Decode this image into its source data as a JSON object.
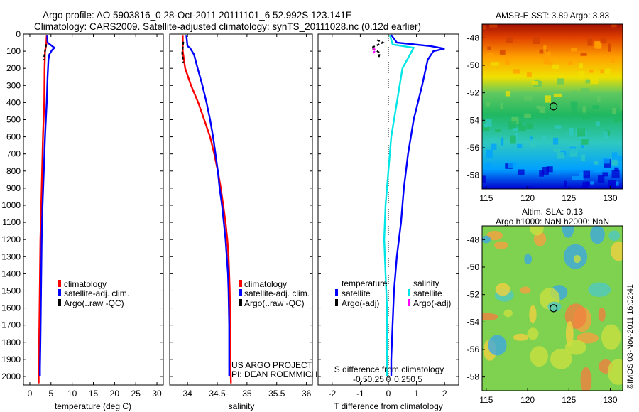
{
  "header": {
    "line1": "Argo profile: AO 5903816_0 28-Oct-2011 20111101_6 52.992S 123.141E",
    "line2": "Climatology: CARS2009. Satellite-adjusted climatology: synTS_20111028.nc (0.12d earlier)"
  },
  "colors": {
    "red": "#ff0000",
    "blue": "#0000ff",
    "cyan": "#00e5e5",
    "magenta": "#ff00ff",
    "black": "#000000"
  },
  "chart_data": [
    {
      "id": "temperature",
      "type": "line",
      "xlabel": "temperature (deg C)",
      "ylabel": "",
      "xlim": [
        -1.5,
        31.5
      ],
      "ylim": [
        2050,
        0
      ],
      "xticks": [
        0,
        5,
        10,
        15,
        20,
        25,
        30
      ],
      "yticks": [
        0,
        100,
        200,
        300,
        400,
        500,
        600,
        700,
        800,
        900,
        1000,
        1100,
        1200,
        1300,
        1400,
        1500,
        1600,
        1700,
        1800,
        1900,
        2000
      ],
      "legend": [
        "climatology",
        "satellite-adj. clim.",
        "Argo(..raw -QC)"
      ],
      "series": [
        {
          "name": "climatology",
          "color": "red",
          "points": [
            [
              4.0,
              5
            ],
            [
              3.9,
              60
            ],
            [
              3.6,
              100
            ],
            [
              3.5,
              200
            ],
            [
              3.4,
              400
            ],
            [
              3.1,
              600
            ],
            [
              2.9,
              800
            ],
            [
              2.7,
              1000
            ],
            [
              2.5,
              1200
            ],
            [
              2.4,
              1400
            ],
            [
              2.3,
              1600
            ],
            [
              2.2,
              1800
            ],
            [
              2.1,
              1950
            ],
            [
              2.1,
              2040
            ]
          ]
        },
        {
          "name": "satellite-adj. clim.",
          "color": "blue",
          "points": [
            [
              4.1,
              5
            ],
            [
              4.2,
              50
            ],
            [
              5.8,
              80
            ],
            [
              5.2,
              95
            ],
            [
              4.6,
              120
            ],
            [
              4.4,
              150
            ],
            [
              4.2,
              250
            ],
            [
              4.0,
              400
            ],
            [
              3.6,
              600
            ],
            [
              3.3,
              800
            ],
            [
              3.0,
              1000
            ],
            [
              2.8,
              1200
            ],
            [
              2.7,
              1400
            ],
            [
              2.6,
              1600
            ],
            [
              2.5,
              1800
            ],
            [
              2.4,
              1950
            ],
            [
              2.4,
              2000
            ]
          ]
        },
        {
          "name": "Argo(..raw -QC)",
          "color": "black",
          "dashed": true,
          "points": [
            [
              3.9,
              60
            ],
            [
              3.7,
              85
            ],
            [
              3.6,
              105
            ],
            [
              3.4,
              130
            ],
            [
              3.3,
              150
            ]
          ]
        }
      ]
    },
    {
      "id": "salinity",
      "type": "line",
      "xlabel": "salinity",
      "xlim": [
        33.7,
        36.1
      ],
      "ylim": [
        2050,
        0
      ],
      "xticks": [
        34,
        34.5,
        35,
        35.5,
        36
      ],
      "legend": [
        "climatology",
        "satellite-adj. clim.",
        "Argo(..raw -QC)"
      ],
      "annotation": [
        "US ARGO PROJECT",
        "PI: DEAN ROEMMICH"
      ],
      "series": [
        {
          "name": "climatology",
          "color": "red",
          "points": [
            [
              33.92,
              5
            ],
            [
              33.92,
              100
            ],
            [
              33.96,
              200
            ],
            [
              34.06,
              300
            ],
            [
              34.18,
              400
            ],
            [
              34.28,
              500
            ],
            [
              34.38,
              600
            ],
            [
              34.45,
              700
            ],
            [
              34.51,
              800
            ],
            [
              34.56,
              900
            ],
            [
              34.6,
              1000
            ],
            [
              34.64,
              1100
            ],
            [
              34.67,
              1200
            ],
            [
              34.69,
              1300
            ],
            [
              34.7,
              1400
            ],
            [
              34.71,
              1500
            ],
            [
              34.72,
              1700
            ],
            [
              34.72,
              1900
            ],
            [
              34.73,
              2040
            ]
          ]
        },
        {
          "name": "satellite-adj. clim.",
          "color": "blue",
          "points": [
            [
              33.98,
              5
            ],
            [
              34.0,
              70
            ],
            [
              34.04,
              80
            ],
            [
              34.11,
              120
            ],
            [
              34.17,
              200
            ],
            [
              34.25,
              300
            ],
            [
              34.32,
              400
            ],
            [
              34.38,
              500
            ],
            [
              34.43,
              600
            ],
            [
              34.47,
              700
            ],
            [
              34.51,
              800
            ],
            [
              34.54,
              900
            ],
            [
              34.58,
              1000
            ],
            [
              34.61,
              1100
            ],
            [
              34.64,
              1200
            ],
            [
              34.66,
              1300
            ],
            [
              34.68,
              1400
            ],
            [
              34.69,
              1500
            ],
            [
              34.7,
              1700
            ],
            [
              34.7,
              1850
            ],
            [
              34.7,
              2000
            ]
          ]
        },
        {
          "name": "Argo(..raw -QC)",
          "color": "black",
          "dashed": true,
          "points": [
            [
              33.93,
              45
            ],
            [
              33.92,
              80
            ],
            [
              33.91,
              110
            ],
            [
              33.92,
              140
            ],
            [
              33.93,
              165
            ]
          ]
        }
      ]
    },
    {
      "id": "difference",
      "type": "line",
      "xlabel": "T difference from climatology",
      "xlabel_top": "S difference from climatology",
      "xlim": [
        -2.5,
        2.5
      ],
      "ylim": [
        2050,
        0
      ],
      "xticks": [
        -2,
        -1,
        0,
        1,
        2
      ],
      "xtick_labels": [
        "-2",
        "-1",
        "0",
        "1",
        "2"
      ],
      "sticks": [
        -1,
        -0.5,
        0,
        0.5,
        1
      ],
      "stick_labels": [
        "-0.5",
        "-0.25",
        "0",
        "0.25",
        "0.5"
      ],
      "legend_headers": [
        "temperature",
        "salinity"
      ],
      "legend": [
        "satellite",
        "Argo(-adj)",
        "satellite",
        "Argo(-adj)"
      ],
      "series": [
        {
          "name": "temperature satellite",
          "color": "blue",
          "points": [
            [
              0.1,
              5
            ],
            [
              0.3,
              50
            ],
            [
              1.5,
              70
            ],
            [
              2.0,
              85
            ],
            [
              1.6,
              100
            ],
            [
              1.4,
              150
            ],
            [
              1.2,
              300
            ],
            [
              0.9,
              500
            ],
            [
              0.7,
              700
            ],
            [
              0.55,
              900
            ],
            [
              0.45,
              1100
            ],
            [
              0.3,
              1300
            ],
            [
              0.2,
              1500
            ],
            [
              0.15,
              1700
            ],
            [
              0.1,
              1900
            ],
            [
              0.1,
              2000
            ]
          ]
        },
        {
          "name": "salinity satellite",
          "color": "cyan",
          "points": [
            [
              0.05,
              5
            ],
            [
              0.15,
              60
            ],
            [
              0.9,
              80
            ],
            [
              0.8,
              110
            ],
            [
              0.5,
              200
            ],
            [
              0.3,
              400
            ],
            [
              0.1,
              600
            ],
            [
              0.0,
              800
            ],
            [
              -0.1,
              1000
            ],
            [
              -0.15,
              1200
            ],
            [
              -0.1,
              1400
            ],
            [
              -0.05,
              1600
            ],
            [
              -0.05,
              1800
            ],
            [
              -0.05,
              2000
            ]
          ]
        },
        {
          "name": "temperature Argo(-adj)",
          "color": "black",
          "dashed": true,
          "points": [
            [
              -0.4,
              35
            ],
            [
              -0.2,
              50
            ],
            [
              -0.6,
              80
            ],
            [
              -0.3,
              110
            ],
            [
              -0.35,
              140
            ]
          ]
        },
        {
          "name": "salinity Argo(-adj)",
          "color": "magenta",
          "dashed": true,
          "points": [
            [
              -0.55,
              80
            ],
            [
              -0.45,
              95
            ],
            [
              -0.6,
              120
            ]
          ]
        }
      ]
    },
    {
      "id": "sst_map",
      "type": "heatmap",
      "title": "AMSR-E SST: 3.89  Argo: 3.83",
      "xlim": [
        114.5,
        131.5
      ],
      "ylim": [
        -59,
        -47
      ],
      "xticks": [
        115,
        120,
        125,
        130
      ],
      "yticks": [
        -48,
        -50,
        -52,
        -54,
        -56,
        -58
      ],
      "marker": [
        123.141,
        -52.992
      ]
    },
    {
      "id": "sla_map",
      "type": "heatmap",
      "title": "Altim. SLA: 0.13",
      "subtitle": "Argo h1000: NaN  h2000: NaN",
      "xlim": [
        114.5,
        131.5
      ],
      "ylim": [
        -59,
        -47
      ],
      "xticks": [
        115,
        120,
        125,
        130
      ],
      "yticks": [
        -48,
        -50,
        -52,
        -54,
        -56,
        -58
      ],
      "marker": [
        123.141,
        -52.992
      ]
    }
  ],
  "footer": {
    "stamp": "©IMOS 03-Nov-2011 16:02:41"
  }
}
